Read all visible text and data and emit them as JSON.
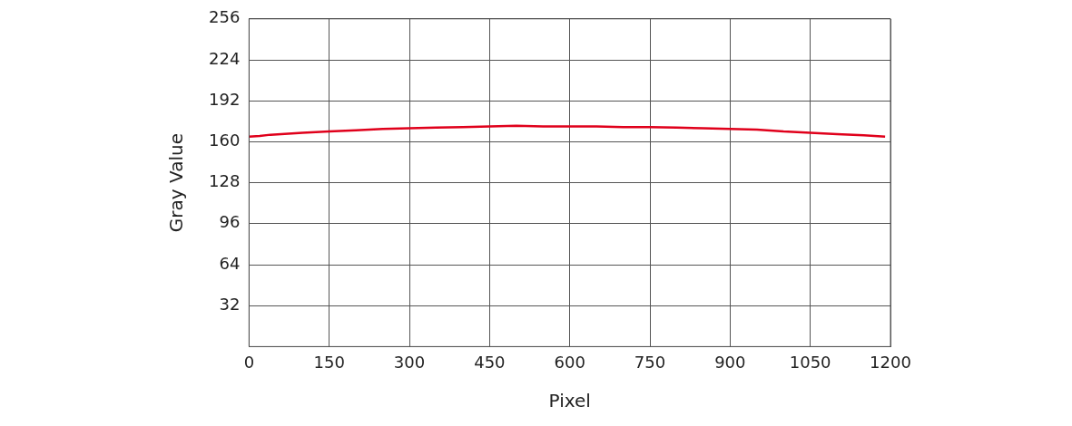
{
  "chart_data": {
    "type": "line",
    "xlabel": "Pixel",
    "ylabel": "Gray Value",
    "x": [
      0,
      20,
      40,
      60,
      80,
      100,
      150,
      200,
      250,
      300,
      350,
      400,
      450,
      500,
      550,
      600,
      650,
      700,
      750,
      800,
      850,
      900,
      950,
      1000,
      1050,
      1100,
      1150,
      1190
    ],
    "series": [
      {
        "color": "#e0001b",
        "values": [
          164,
          164.5,
          165.5,
          166,
          166.5,
          167,
          168,
          169,
          170,
          170.5,
          171,
          171.5,
          172,
          172.5,
          172,
          172,
          172,
          171.5,
          171.5,
          171,
          170.5,
          170,
          169.5,
          168,
          167,
          166,
          165,
          164
        ]
      }
    ],
    "xlim": [
      0,
      1200
    ],
    "xticks": [
      0,
      150,
      300,
      450,
      600,
      750,
      900,
      1050,
      1200
    ],
    "ylim": [
      0,
      256
    ],
    "yticks": [
      32,
      64,
      96,
      128,
      160,
      192,
      224,
      256
    ],
    "grid": true,
    "legend": false,
    "marker": "none",
    "line_style": "solid"
  }
}
